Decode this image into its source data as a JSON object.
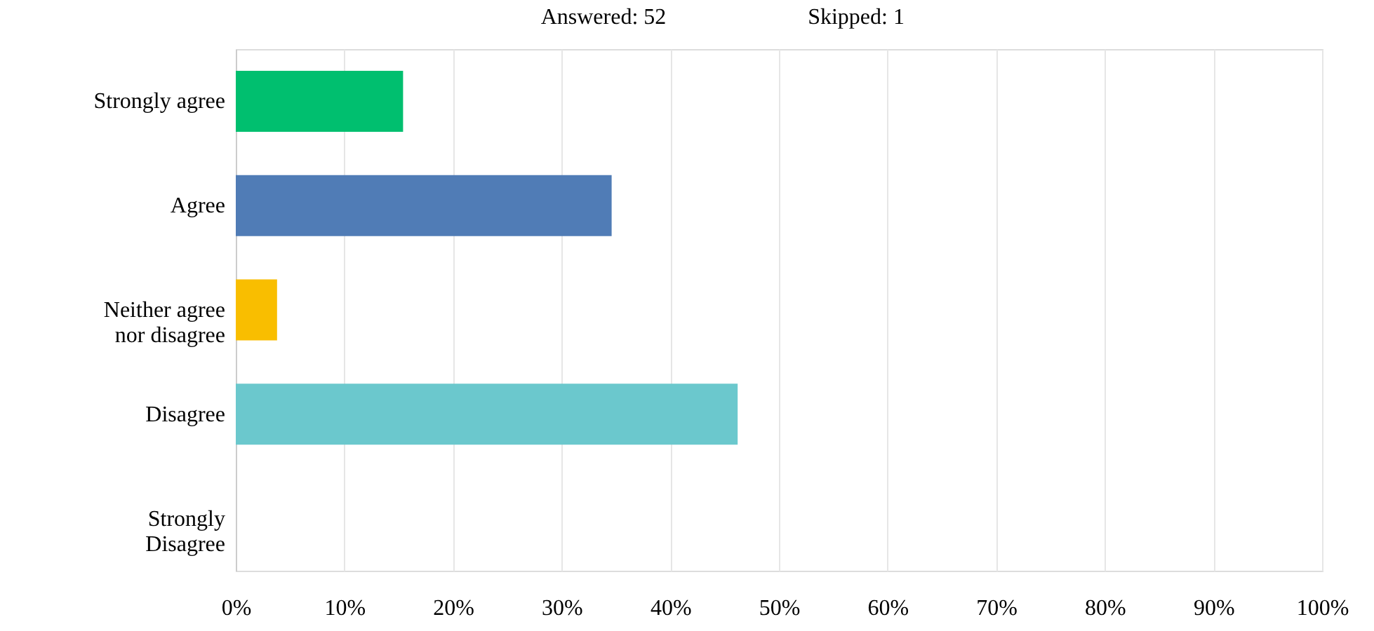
{
  "chart_data": {
    "type": "bar",
    "orientation": "horizontal",
    "categories": [
      "Strongly agree",
      "Agree",
      "Neither agree\nnor disagree",
      "Disagree",
      "Strongly\nDisagree"
    ],
    "values": [
      15.4,
      34.6,
      3.8,
      46.2,
      0
    ],
    "colors": [
      "#00bf6f",
      "#507cb6",
      "#f9be00",
      "#6bc8cd",
      "#9d5ba3"
    ],
    "xlim": [
      0,
      100
    ],
    "xticks": [
      {
        "value": 0,
        "label": "0%"
      },
      {
        "value": 10,
        "label": "10%"
      },
      {
        "value": 20,
        "label": "20%"
      },
      {
        "value": 30,
        "label": "30%"
      },
      {
        "value": 40,
        "label": "40%"
      },
      {
        "value": 50,
        "label": "50%"
      },
      {
        "value": 60,
        "label": "60%"
      },
      {
        "value": 70,
        "label": "70%"
      },
      {
        "value": 80,
        "label": "80%"
      },
      {
        "value": 90,
        "label": "90%"
      },
      {
        "value": 100,
        "label": "100%"
      }
    ],
    "grid": "x",
    "annotations": [
      "Answered: 52",
      "Skipped: 1"
    ]
  }
}
